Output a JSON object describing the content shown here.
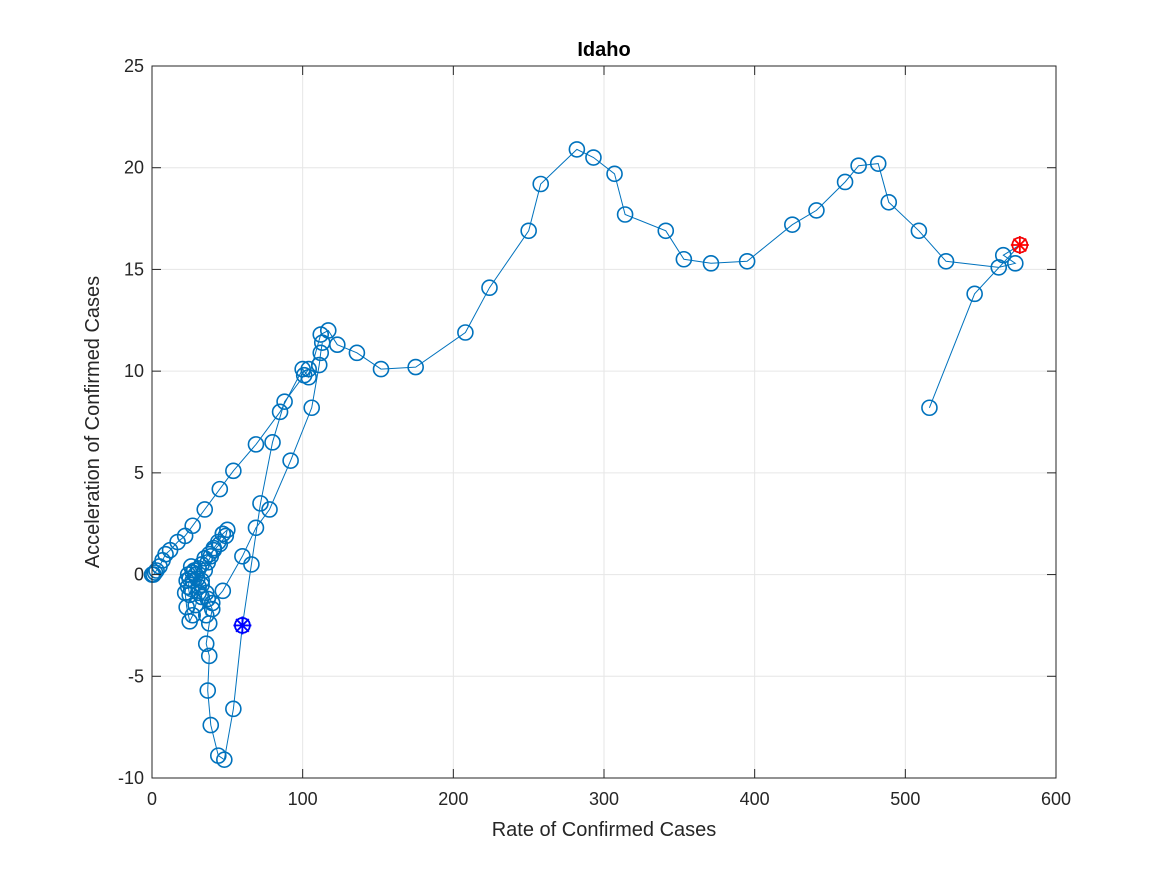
{
  "chart_data": {
    "type": "scatter",
    "title": "Idaho",
    "xlabel": "Rate of Confirmed Cases",
    "ylabel": "Acceleration of Confirmed Cases",
    "xlim": [
      0,
      600
    ],
    "ylim": [
      -10,
      25
    ],
    "xticks": [
      0,
      100,
      200,
      300,
      400,
      500,
      600
    ],
    "yticks": [
      -10,
      -5,
      0,
      5,
      10,
      15,
      20,
      25
    ],
    "xtick_labels": [
      "0",
      "100",
      "200",
      "300",
      "400",
      "500",
      "600"
    ],
    "ytick_labels": [
      "-10",
      "-5",
      "0",
      "5",
      "10",
      "15",
      "20",
      "25"
    ],
    "grid": true,
    "colors": {
      "series": "#0072BD",
      "start_marker": "#0000FF",
      "end_marker": "#FF0000",
      "grid": "#e6e6e6",
      "axis": "#262626"
    },
    "series": [
      {
        "marker": "circle",
        "line": "solid",
        "x": [
          0,
          1,
          2,
          3,
          5,
          7,
          9,
          12,
          17,
          22,
          27,
          35,
          45,
          54,
          69,
          85,
          100,
          104,
          112,
          117,
          123,
          136,
          152,
          175,
          208,
          224,
          250,
          258,
          282,
          293,
          307,
          314,
          341,
          353,
          371,
          395,
          425,
          441,
          460,
          469,
          482,
          489,
          509,
          527,
          562,
          573,
          565,
          576,
          546,
          516
        ],
        "y": [
          0,
          0,
          0.1,
          0.2,
          0.4,
          0.7,
          1.0,
          1.2,
          1.6,
          1.9,
          2.4,
          3.2,
          4.2,
          5.1,
          6.4,
          8.0,
          10.1,
          9.7,
          11.8,
          12.0,
          11.3,
          10.9,
          10.1,
          10.2,
          11.9,
          14.1,
          16.9,
          19.2,
          20.9,
          20.5,
          19.7,
          17.7,
          16.9,
          15.5,
          15.3,
          15.4,
          17.2,
          17.9,
          19.3,
          20.1,
          20.2,
          18.3,
          16.9,
          15.4,
          15.1,
          15.3,
          15.7,
          16.2,
          13.8,
          8.2
        ]
      },
      {
        "marker": "circle",
        "line": "solid",
        "x": [
          60,
          54,
          48,
          44,
          39,
          37,
          38,
          36,
          38,
          40,
          37,
          36,
          33,
          31,
          30,
          28,
          26,
          24,
          23,
          22,
          23,
          25,
          27,
          29,
          31,
          33,
          35,
          37,
          39,
          41,
          44,
          47
        ],
        "y": [
          -2.5,
          -6.6,
          -9.1,
          -8.9,
          -7.4,
          -5.7,
          -4.0,
          -3.4,
          -2.4,
          -1.7,
          -1.2,
          -2.0,
          -1.1,
          -0.6,
          -0.2,
          0.2,
          0.4,
          0.0,
          -0.3,
          -0.9,
          -1.6,
          -2.3,
          -2.0,
          -1.5,
          -0.9,
          -0.3,
          0.2,
          0.6,
          0.9,
          1.3,
          1.6,
          2.0
        ]
      },
      {
        "marker": "circle",
        "line": "solid",
        "x": [
          47,
          50,
          49,
          45,
          41,
          38,
          35,
          33,
          31,
          29,
          27,
          26,
          25,
          24,
          25,
          27,
          30,
          33,
          36,
          40,
          47,
          60,
          69,
          78,
          92,
          106,
          111,
          112,
          113
        ],
        "y": [
          2.0,
          2.2,
          1.9,
          1.5,
          1.2,
          1.0,
          0.8,
          0.5,
          0.3,
          0.0,
          -0.3,
          -0.7,
          -1.0,
          -0.6,
          -0.2,
          0.1,
          -0.2,
          -0.5,
          -0.9,
          -1.4,
          -0.8,
          0.9,
          2.3,
          3.2,
          5.6,
          8.2,
          10.3,
          10.9,
          11.4
        ]
      },
      {
        "marker": "circle",
        "line": "solid",
        "x": [
          60,
          66,
          72,
          80,
          88,
          101,
          104
        ],
        "y": [
          -2.5,
          0.5,
          3.5,
          6.5,
          8.5,
          9.8,
          10.1
        ]
      }
    ],
    "markers": [
      {
        "name": "start",
        "symbol": "asterisk-circle",
        "x": 60,
        "y": -2.5,
        "color": "#0000FF"
      },
      {
        "name": "end",
        "symbol": "asterisk-circle",
        "x": 576,
        "y": 16.2,
        "color": "#FF0000"
      }
    ]
  }
}
